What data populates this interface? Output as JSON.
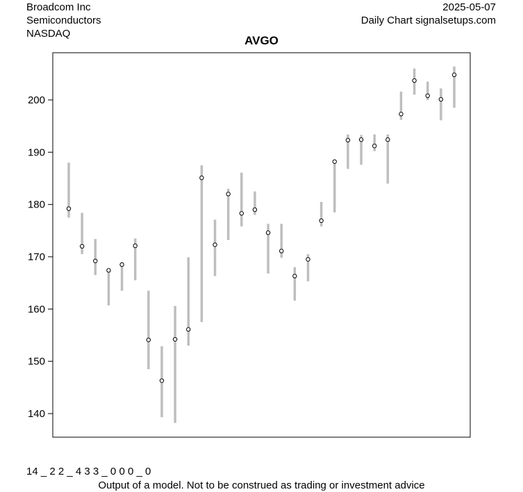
{
  "header": {
    "company": "Broadcom Inc",
    "sector": "Semiconductors",
    "exchange": "NASDAQ",
    "date": "2025-05-07",
    "source": "Daily Chart signalsetups.com"
  },
  "footer": {
    "code": "14 _ 2 2 _ 4 3 3 _ 0 0 0 _ 0",
    "disclaimer": "Output of a model. Not to be construed as trading or investment advice"
  },
  "chart_data": {
    "type": "range",
    "title": "AVGO",
    "xlabel": "",
    "ylabel": "",
    "ylim": [
      134,
      207.5
    ],
    "yticks": [
      140,
      150,
      160,
      170,
      180,
      190,
      200
    ],
    "grid": false,
    "bar_color": "#bebebe",
    "points": [
      {
        "low": 177.5,
        "high": 188.0,
        "close": 179.2
      },
      {
        "low": 170.5,
        "high": 178.4,
        "close": 172.0
      },
      {
        "low": 166.5,
        "high": 173.4,
        "close": 169.2
      },
      {
        "low": 160.7,
        "high": 167.8,
        "close": 167.4
      },
      {
        "low": 163.5,
        "high": 169.0,
        "close": 168.5
      },
      {
        "low": 165.5,
        "high": 173.5,
        "close": 172.1
      },
      {
        "low": 148.5,
        "high": 163.5,
        "close": 154.1
      },
      {
        "low": 139.3,
        "high": 152.9,
        "close": 146.3
      },
      {
        "low": 138.2,
        "high": 160.6,
        "close": 154.2
      },
      {
        "low": 153.0,
        "high": 169.9,
        "close": 156.1
      },
      {
        "low": 157.5,
        "high": 187.5,
        "close": 185.1
      },
      {
        "low": 166.3,
        "high": 177.1,
        "close": 172.3
      },
      {
        "low": 173.2,
        "high": 183.0,
        "close": 182.0
      },
      {
        "low": 175.8,
        "high": 186.1,
        "close": 178.3
      },
      {
        "low": 178.0,
        "high": 182.5,
        "close": 179.0
      },
      {
        "low": 166.8,
        "high": 176.3,
        "close": 174.6
      },
      {
        "low": 169.8,
        "high": 176.3,
        "close": 171.1
      },
      {
        "low": 161.6,
        "high": 168.0,
        "close": 166.3
      },
      {
        "low": 165.3,
        "high": 170.5,
        "close": 169.5
      },
      {
        "low": 175.8,
        "high": 180.5,
        "close": 176.9
      },
      {
        "low": 178.5,
        "high": 188.6,
        "close": 188.2
      },
      {
        "low": 186.8,
        "high": 193.4,
        "close": 192.3
      },
      {
        "low": 187.6,
        "high": 193.3,
        "close": 192.4
      },
      {
        "low": 190.2,
        "high": 193.4,
        "close": 191.2
      },
      {
        "low": 184.0,
        "high": 193.4,
        "close": 192.4
      },
      {
        "low": 196.2,
        "high": 201.6,
        "close": 197.3
      },
      {
        "low": 201.0,
        "high": 206.0,
        "close": 203.7
      },
      {
        "low": 200.0,
        "high": 203.5,
        "close": 200.8
      },
      {
        "low": 196.1,
        "high": 202.2,
        "close": 200.1
      },
      {
        "low": 198.5,
        "high": 206.4,
        "close": 204.8
      }
    ]
  }
}
